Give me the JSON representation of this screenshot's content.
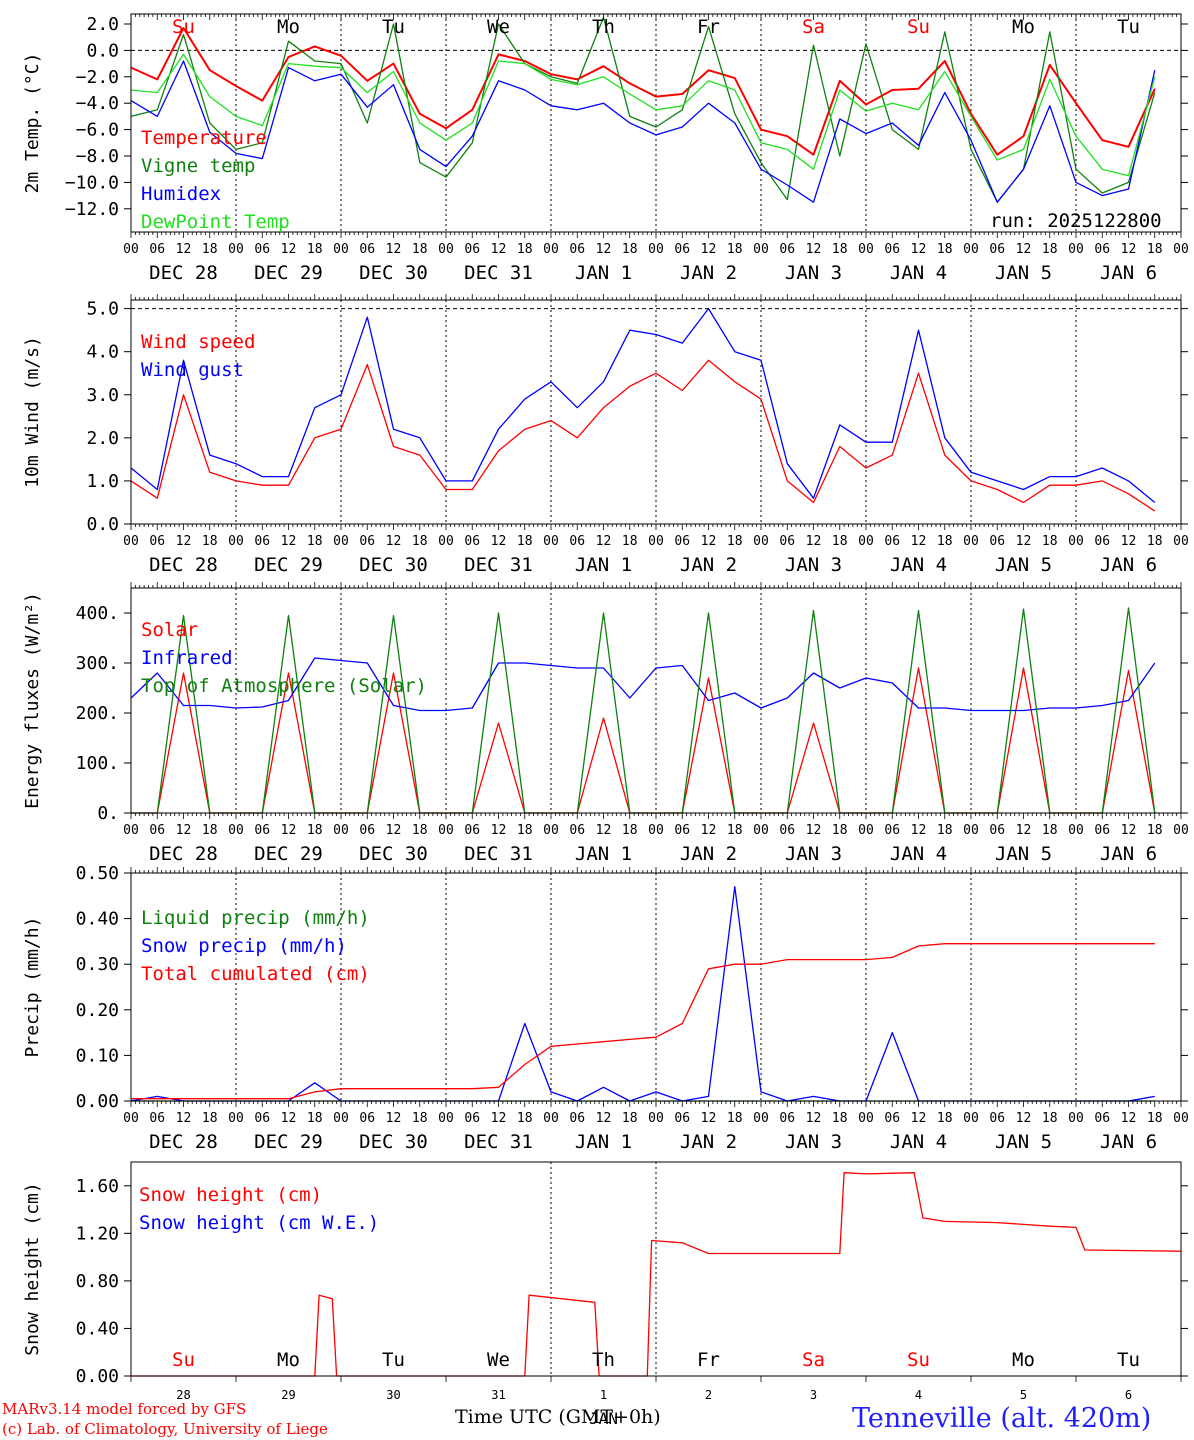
{
  "run_label": "run: 2025122800",
  "footer": {
    "model": "MARv3.14 model forced by GFS",
    "credit": "(c) Lab. of Climatology, University of Liege",
    "time_axis": "Time UTC (GMT+0h)",
    "station": "Tenneville (alt. 420m)"
  },
  "hour_ticks": [
    "00",
    "06",
    "12",
    "18"
  ],
  "end_tick": "00",
  "date_labels": [
    "DEC 28",
    "DEC 29",
    "DEC 30",
    "DEC 31",
    "JAN  1",
    "JAN  2",
    "JAN  3",
    "JAN  4",
    "JAN  5",
    "JAN  6"
  ],
  "weekdays": [
    {
      "label": "Su",
      "weekend": true
    },
    {
      "label": "Mo",
      "weekend": false
    },
    {
      "label": "Tu",
      "weekend": false
    },
    {
      "label": "We",
      "weekend": false
    },
    {
      "label": "Th",
      "weekend": false
    },
    {
      "label": "Fr",
      "weekend": false
    },
    {
      "label": "Sa",
      "weekend": true
    },
    {
      "label": "Su",
      "weekend": true
    },
    {
      "label": "Mo",
      "weekend": false
    },
    {
      "label": "Tu",
      "weekend": false
    }
  ],
  "bottom_day_numbers": [
    "28",
    "29",
    "30",
    "31",
    "1",
    "2",
    "3",
    "4",
    "5",
    "6"
  ],
  "bottom_month": "JAN",
  "colors": {
    "red": "#ff0000",
    "green": "#108010",
    "blue": "#0000ff",
    "lime": "#20e020",
    "grid": "#000000"
  },
  "chart_data": [
    {
      "type": "line",
      "ylabel": "2m Temp. (°C)",
      "ylim": [
        -13,
        2
      ],
      "yticks": [
        "2.0",
        "0.0",
        "−2.0",
        "−4.0",
        "−6.0",
        "−8.0",
        "−10.0",
        "−12.0"
      ],
      "ytick_values": [
        2,
        0,
        -2,
        -4,
        -6,
        -8,
        -10,
        -12
      ],
      "ref_line": 0,
      "x_hours": [
        0,
        6,
        12,
        18,
        24,
        30,
        36,
        42,
        48,
        54,
        60,
        66,
        72,
        78,
        84,
        90,
        96,
        102,
        108,
        114,
        120,
        126,
        132,
        138,
        144,
        150,
        156,
        162,
        168,
        174,
        180,
        186,
        192,
        198,
        204,
        210,
        216,
        222,
        228,
        234
      ],
      "series": [
        {
          "name": "Temperature",
          "color": "red",
          "values": [
            -1.3,
            -2.2,
            1.7,
            -1.5,
            -2.7,
            -3.8,
            -0.5,
            0.3,
            -0.4,
            -2.3,
            -1.0,
            -4.8,
            -5.9,
            -4.5,
            -0.3,
            -0.8,
            -1.8,
            -2.2,
            -1.2,
            -2.5,
            -3.5,
            -3.3,
            -1.5,
            -2.1,
            -6.0,
            -6.5,
            -7.9,
            -2.3,
            -4.1,
            -3.0,
            -2.9,
            -0.8,
            -4.8,
            -7.9,
            -6.5,
            -1.1,
            -4.0,
            -6.8,
            -7.3,
            -2.9
          ]
        },
        {
          "name": "Vigne temp",
          "color": "green",
          "values": [
            -5.0,
            -4.5,
            1.2,
            -5.5,
            -7.5,
            -7.0,
            0.7,
            -0.8,
            -1.0,
            -5.5,
            2.0,
            -8.5,
            -9.6,
            -7.0,
            2.0,
            -1.0,
            -2.0,
            -2.5,
            2.5,
            -5.0,
            -5.8,
            -4.5,
            1.8,
            -4.8,
            -8.5,
            -11.3,
            0.4,
            -8.0,
            0.5,
            -6.0,
            -7.5,
            1.4,
            -7.5,
            -11.5,
            -9.0,
            1.4,
            -9.0,
            -10.8,
            -10.0,
            -3.2
          ]
        },
        {
          "name": "Humidex",
          "color": "blue",
          "values": [
            -3.8,
            -5.0,
            -0.8,
            -6.2,
            -7.8,
            -8.2,
            -1.3,
            -2.3,
            -1.8,
            -4.3,
            -2.6,
            -7.5,
            -8.8,
            -6.5,
            -2.3,
            -3.0,
            -4.2,
            -4.5,
            -4.0,
            -5.5,
            -6.4,
            -5.8,
            -4.0,
            -5.5,
            -9.0,
            -10.2,
            -11.5,
            -5.2,
            -6.3,
            -5.5,
            -7.2,
            -3.2,
            -6.8,
            -11.5,
            -9.0,
            -4.2,
            -10.0,
            -11.0,
            -10.5,
            -1.5
          ]
        },
        {
          "name": "DewPoint Temp",
          "color": "lime",
          "values": [
            -3.0,
            -3.2,
            -0.3,
            -3.5,
            -5.0,
            -5.7,
            -1.0,
            -1.2,
            -1.3,
            -3.2,
            -1.6,
            -5.5,
            -6.8,
            -5.5,
            -0.8,
            -1.0,
            -2.2,
            -2.6,
            -2.0,
            -3.3,
            -4.5,
            -4.2,
            -2.3,
            -3.0,
            -7.0,
            -7.5,
            -9.0,
            -3.0,
            -4.6,
            -4.0,
            -4.5,
            -1.6,
            -5.0,
            -8.3,
            -7.5,
            -2.2,
            -6.5,
            -9.0,
            -9.5,
            -2.0
          ]
        }
      ]
    },
    {
      "type": "line",
      "ylabel": "10m Wind (m/s)",
      "ylim": [
        0,
        5.2
      ],
      "yticks": [
        "5.0",
        "4.0",
        "3.0",
        "2.0",
        "1.0",
        "0.0"
      ],
      "ytick_values": [
        5,
        4,
        3,
        2,
        1,
        0
      ],
      "ref_line": 5,
      "x_hours": [
        0,
        6,
        12,
        18,
        24,
        30,
        36,
        42,
        48,
        54,
        60,
        66,
        72,
        78,
        84,
        90,
        96,
        102,
        108,
        114,
        120,
        126,
        132,
        138,
        144,
        150,
        156,
        162,
        168,
        174,
        180,
        186,
        192,
        198,
        204,
        210,
        216,
        222,
        228,
        234
      ],
      "series": [
        {
          "name": "Wind speed",
          "color": "red",
          "values": [
            1.0,
            0.6,
            3.0,
            1.2,
            1.0,
            0.9,
            0.9,
            2.0,
            2.2,
            3.7,
            1.8,
            1.6,
            0.8,
            0.8,
            1.7,
            2.2,
            2.4,
            2.0,
            2.7,
            3.2,
            3.5,
            3.1,
            3.8,
            3.3,
            2.9,
            1.0,
            0.5,
            1.8,
            1.3,
            1.6,
            3.5,
            1.6,
            1.0,
            0.8,
            0.5,
            0.9,
            0.9,
            1.0,
            0.7,
            0.3
          ]
        },
        {
          "name": "Wind gust",
          "color": "blue",
          "values": [
            1.3,
            0.8,
            3.8,
            1.6,
            1.4,
            1.1,
            1.1,
            2.7,
            3.0,
            4.8,
            2.2,
            2.0,
            1.0,
            1.0,
            2.2,
            2.9,
            3.3,
            2.7,
            3.3,
            4.5,
            4.4,
            4.2,
            5.0,
            4.0,
            3.8,
            1.4,
            0.6,
            2.3,
            1.9,
            1.9,
            4.5,
            2.0,
            1.2,
            1.0,
            0.8,
            1.1,
            1.1,
            1.3,
            1.0,
            0.5
          ]
        }
      ]
    },
    {
      "type": "line",
      "ylabel": "Energy fluxes (W/m²)",
      "ylim": [
        0,
        450
      ],
      "yticks": [
        "400.",
        "300.",
        "200.",
        "100.",
        "0."
      ],
      "ytick_values": [
        400,
        300,
        200,
        100,
        0
      ],
      "x_hours": [
        0,
        6,
        12,
        18,
        24,
        30,
        36,
        42,
        48,
        54,
        60,
        66,
        72,
        78,
        84,
        90,
        96,
        102,
        108,
        114,
        120,
        126,
        132,
        138,
        144,
        150,
        156,
        162,
        168,
        174,
        180,
        186,
        192,
        198,
        204,
        210,
        216,
        222,
        228,
        234
      ],
      "series": [
        {
          "name": "Solar",
          "color": "red",
          "values": [
            0,
            0,
            280,
            0,
            0,
            0,
            280,
            0,
            0,
            0,
            280,
            0,
            0,
            0,
            180,
            0,
            0,
            0,
            190,
            0,
            0,
            0,
            270,
            0,
            0,
            0,
            180,
            0,
            0,
            0,
            290,
            0,
            0,
            0,
            290,
            0,
            0,
            0,
            285,
            0
          ]
        },
        {
          "name": "Infrared",
          "color": "blue",
          "values": [
            230,
            280,
            215,
            215,
            210,
            212,
            225,
            310,
            305,
            300,
            215,
            205,
            205,
            210,
            300,
            300,
            295,
            290,
            290,
            230,
            290,
            295,
            225,
            240,
            210,
            230,
            280,
            250,
            270,
            260,
            210,
            210,
            205,
            205,
            205,
            210,
            210,
            215,
            225,
            300
          ]
        },
        {
          "name": "Top of Atmosphere (Solar)",
          "color": "green",
          "values": [
            0,
            0,
            395,
            0,
            0,
            0,
            395,
            0,
            0,
            0,
            395,
            0,
            0,
            0,
            400,
            0,
            0,
            0,
            400,
            0,
            0,
            0,
            400,
            0,
            0,
            0,
            405,
            0,
            0,
            0,
            405,
            0,
            0,
            0,
            408,
            0,
            0,
            0,
            410,
            0
          ]
        }
      ]
    },
    {
      "type": "line",
      "ylabel": "Precip (mm/h)",
      "ylim": [
        0,
        0.5
      ],
      "yticks": [
        "0.50",
        "0.40",
        "0.30",
        "0.20",
        "0.10",
        "0.00"
      ],
      "ytick_values": [
        0.5,
        0.4,
        0.3,
        0.2,
        0.1,
        0
      ],
      "x_hours": [
        0,
        6,
        12,
        18,
        24,
        30,
        36,
        42,
        48,
        54,
        60,
        66,
        72,
        78,
        84,
        90,
        96,
        102,
        108,
        114,
        120,
        126,
        132,
        138,
        144,
        150,
        156,
        162,
        168,
        174,
        180,
        186,
        192,
        198,
        204,
        210,
        216,
        222,
        228,
        234
      ],
      "series": [
        {
          "name": "Liquid precip (mm/h)",
          "color": "green",
          "values": [
            0,
            0,
            0,
            0,
            0,
            0,
            0,
            0,
            0,
            0,
            0,
            0,
            0,
            0,
            0,
            0,
            0,
            0,
            0,
            0,
            0,
            0,
            0,
            0,
            0,
            0,
            0,
            0,
            0,
            0,
            0,
            0,
            0,
            0,
            0,
            0,
            0,
            0,
            0,
            0
          ]
        },
        {
          "name": "Snow precip (mm/h)",
          "color": "blue",
          "values": [
            0,
            0.01,
            0,
            0,
            0,
            0,
            0,
            0.04,
            0,
            0,
            0,
            0,
            0,
            0,
            0,
            0.17,
            0.02,
            0,
            0.03,
            0,
            0.02,
            0,
            0.01,
            0.47,
            0.02,
            0,
            0.01,
            0,
            0,
            0.15,
            0,
            0,
            0,
            0,
            0,
            0,
            0,
            0,
            0,
            0.01
          ]
        },
        {
          "name": "Total cumulated (cm)",
          "color": "red",
          "values": [
            0.005,
            0.005,
            0.005,
            0.005,
            0.005,
            0.005,
            0.005,
            0.02,
            0.027,
            0.027,
            0.027,
            0.027,
            0.027,
            0.027,
            0.03,
            0.08,
            0.12,
            0.125,
            0.13,
            0.135,
            0.14,
            0.17,
            0.29,
            0.3,
            0.3,
            0.31,
            0.31,
            0.31,
            0.31,
            0.315,
            0.34,
            0.345,
            0.345,
            0.345,
            0.345,
            0.345,
            0.345,
            0.345,
            0.345,
            0.345
          ]
        }
      ]
    },
    {
      "type": "line",
      "ylabel": "Snow height (cm)",
      "ylim": [
        0,
        1.8
      ],
      "yticks": [
        "1.60",
        "1.20",
        "0.80",
        "0.40",
        "0.00"
      ],
      "ytick_values": [
        1.6,
        1.2,
        0.8,
        0.4,
        0
      ],
      "x_hours": [
        0,
        42,
        43,
        46,
        47,
        90,
        91,
        106,
        107,
        118,
        119,
        126,
        132,
        144,
        156,
        162,
        163,
        168,
        179,
        181,
        186,
        198,
        210,
        216,
        218,
        240
      ],
      "series": [
        {
          "name": "Snow height (cm)",
          "color": "red",
          "values": [
            0,
            0,
            0.68,
            0.65,
            0,
            0,
            0.68,
            0.62,
            0,
            0,
            1.14,
            1.12,
            1.03,
            1.03,
            1.03,
            1.03,
            1.71,
            1.7,
            1.71,
            1.33,
            1.3,
            1.29,
            1.26,
            1.25,
            1.06,
            1.05
          ]
        },
        {
          "name": "Snow height (cm W.E.)",
          "color": "blue",
          "values": []
        }
      ]
    }
  ]
}
